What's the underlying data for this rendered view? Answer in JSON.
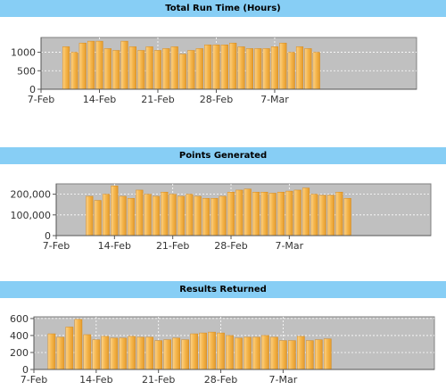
{
  "chart_data": [
    {
      "type": "bar",
      "title": "Total Run Time (Hours)",
      "xlabel": "",
      "ylabel": "",
      "x_start": "2013-02-07",
      "x_ticks": [
        "7-Feb",
        "14-Feb",
        "21-Feb",
        "28-Feb",
        "7-Mar"
      ],
      "y_ticks": [
        "0",
        "500",
        "1000"
      ],
      "ylim": [
        0,
        1400
      ],
      "grid": true,
      "bar_color": "#f5b54a",
      "categories": [
        "2013-02-10",
        "2013-02-11",
        "2013-02-12",
        "2013-02-13",
        "2013-02-14",
        "2013-02-15",
        "2013-02-16",
        "2013-02-17",
        "2013-02-18",
        "2013-02-19",
        "2013-02-20",
        "2013-02-21",
        "2013-02-22",
        "2013-02-23",
        "2013-02-24",
        "2013-02-25",
        "2013-02-26",
        "2013-02-27",
        "2013-02-28",
        "2013-03-01",
        "2013-03-02",
        "2013-03-03",
        "2013-03-04",
        "2013-03-05",
        "2013-03-06",
        "2013-03-07",
        "2013-03-08",
        "2013-03-09",
        "2013-03-10",
        "2013-03-11",
        "2013-03-12"
      ],
      "values": [
        1150,
        1000,
        1250,
        1300,
        1300,
        1100,
        1050,
        1300,
        1150,
        1050,
        1150,
        1050,
        1100,
        1150,
        950,
        1050,
        1100,
        1200,
        1200,
        1200,
        1250,
        1150,
        1100,
        1100,
        1100,
        1150,
        1250,
        1000,
        1150,
        1100,
        1000
      ]
    },
    {
      "type": "bar",
      "title": "Points Generated",
      "xlabel": "",
      "ylabel": "",
      "x_start": "2013-02-07",
      "x_ticks": [
        "7-Feb",
        "14-Feb",
        "21-Feb",
        "28-Feb",
        "7-Mar"
      ],
      "y_ticks": [
        "0",
        "100,000",
        "200,000"
      ],
      "ylim": [
        0,
        250000
      ],
      "grid": true,
      "bar_color": "#f5b54a",
      "categories": [
        "2013-02-11",
        "2013-02-12",
        "2013-02-13",
        "2013-02-14",
        "2013-02-15",
        "2013-02-16",
        "2013-02-17",
        "2013-02-18",
        "2013-02-19",
        "2013-02-20",
        "2013-02-21",
        "2013-02-22",
        "2013-02-23",
        "2013-02-24",
        "2013-02-25",
        "2013-02-26",
        "2013-02-27",
        "2013-02-28",
        "2013-03-01",
        "2013-03-02",
        "2013-03-03",
        "2013-03-04",
        "2013-03-05",
        "2013-03-06",
        "2013-03-07",
        "2013-03-08",
        "2013-03-09",
        "2013-03-10",
        "2013-03-11",
        "2013-03-12",
        "2013-03-13",
        "2013-03-14"
      ],
      "values": [
        190000,
        170000,
        200000,
        240000,
        190000,
        180000,
        220000,
        200000,
        190000,
        210000,
        200000,
        190000,
        200000,
        190000,
        180000,
        180000,
        190000,
        210000,
        220000,
        225000,
        210000,
        210000,
        205000,
        210000,
        215000,
        220000,
        230000,
        200000,
        195000,
        195000,
        210000,
        180000
      ]
    },
    {
      "type": "bar",
      "title": "Results Returned",
      "xlabel": "",
      "ylabel": "",
      "x_start": "2013-02-07",
      "x_ticks": [
        "7-Feb",
        "14-Feb",
        "21-Feb",
        "28-Feb",
        "7-Mar"
      ],
      "y_ticks": [
        "0",
        "200",
        "400",
        "600"
      ],
      "ylim": [
        0,
        620
      ],
      "grid": true,
      "bar_color": "#f5b54a",
      "categories": [
        "2013-02-09",
        "2013-02-10",
        "2013-02-11",
        "2013-02-12",
        "2013-02-13",
        "2013-02-14",
        "2013-02-15",
        "2013-02-16",
        "2013-02-17",
        "2013-02-18",
        "2013-02-19",
        "2013-02-20",
        "2013-02-21",
        "2013-02-22",
        "2013-02-23",
        "2013-02-24",
        "2013-02-25",
        "2013-02-26",
        "2013-02-27",
        "2013-02-28",
        "2013-03-01",
        "2013-03-02",
        "2013-03-03",
        "2013-03-04",
        "2013-03-05",
        "2013-03-06",
        "2013-03-07",
        "2013-03-08",
        "2013-03-09",
        "2013-03-10",
        "2013-03-11",
        "2013-03-12"
      ],
      "values": [
        420,
        380,
        500,
        590,
        410,
        350,
        390,
        370,
        370,
        390,
        380,
        380,
        340,
        350,
        370,
        350,
        420,
        430,
        440,
        430,
        400,
        370,
        380,
        380,
        400,
        380,
        340,
        340,
        390,
        340,
        350,
        360
      ]
    }
  ]
}
